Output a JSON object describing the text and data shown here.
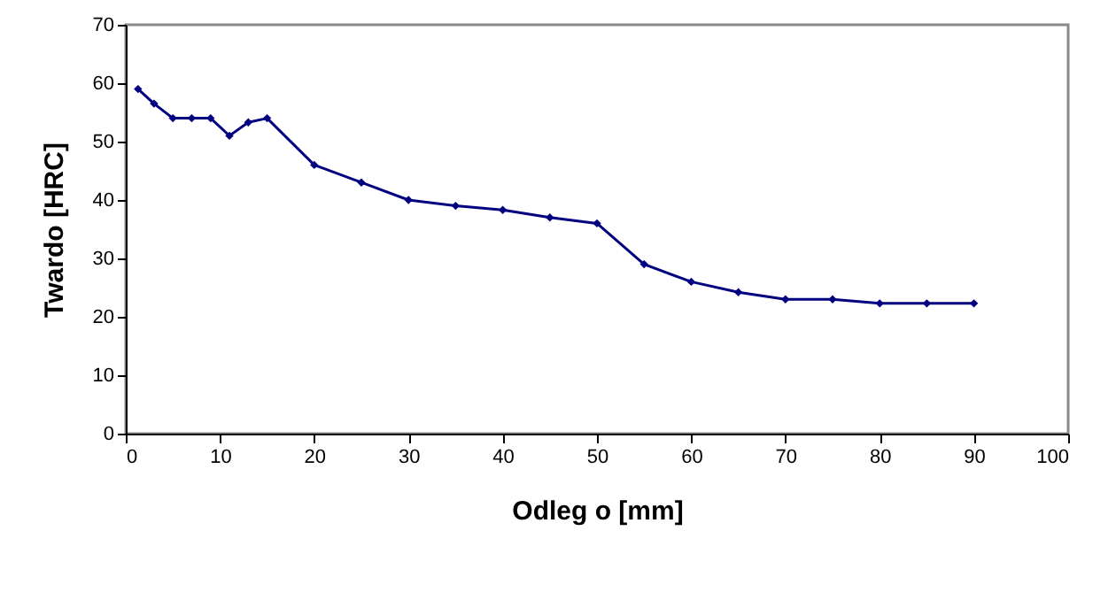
{
  "chart_data": {
    "type": "line",
    "xlabel": "Odleg o    [mm]",
    "ylabel": "Twardo    [HRC]",
    "x": [
      1.3,
      3,
      5,
      7,
      9,
      11,
      13,
      15,
      20,
      25,
      30,
      35,
      40,
      45,
      50,
      55,
      60,
      65,
      70,
      75,
      80,
      85,
      90
    ],
    "series": [
      {
        "color": "#000080",
        "values": [
          59,
          56.5,
          54,
          54,
          54,
          51,
          53.3,
          54,
          46,
          43,
          40,
          39,
          38.3,
          37,
          36,
          29,
          26,
          24.2,
          23,
          23,
          22.3,
          22.3,
          22.3
        ]
      }
    ],
    "xlim": [
      0,
      100
    ],
    "xticks": [
      0,
      10,
      20,
      30,
      40,
      50,
      60,
      70,
      80,
      90,
      100
    ],
    "ylim": [
      0,
      70
    ],
    "yticks": [
      0,
      10,
      20,
      30,
      40,
      50,
      60,
      70
    ],
    "grid": false,
    "marker": "diamond",
    "line_style": "solid"
  }
}
